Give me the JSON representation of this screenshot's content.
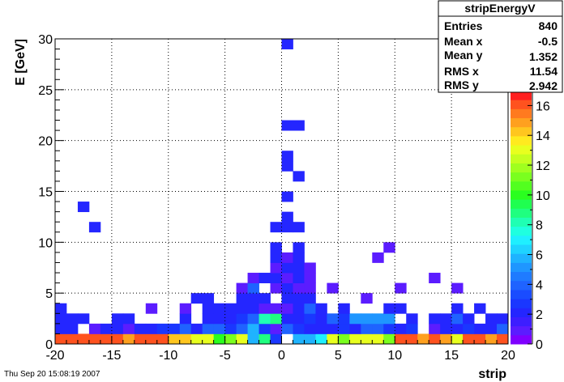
{
  "footer": {
    "timestamp": "Thu Sep 20 15:08:19 2007"
  },
  "stats_box": {
    "title": "stripEnergyV",
    "rows": [
      {
        "label": "Entries",
        "value": "840"
      },
      {
        "label": "Mean x",
        "value": "-0.5"
      },
      {
        "label": "Mean y",
        "value": "1.352"
      },
      {
        "label": "RMS x",
        "value": "11.54"
      },
      {
        "label": "RMS y",
        "value": "2.942"
      }
    ]
  },
  "chart_data": {
    "type": "heatmap",
    "title": "",
    "xlabel": "strip",
    "ylabel": "E [GeV]",
    "xlim": [
      -20,
      20
    ],
    "ylim": [
      0,
      30
    ],
    "x_bin_width": 1,
    "y_bin_width": 1,
    "x_ticks": [
      "-20",
      "-15",
      "-10",
      "-5",
      "0",
      "5",
      "10",
      "15",
      "20"
    ],
    "y_ticks": [
      "0",
      "5",
      "10",
      "15",
      "20",
      "25",
      "30"
    ],
    "z_range": [
      0,
      17
    ],
    "z_ticks": [
      "0",
      "2",
      "4",
      "6",
      "8",
      "10",
      "12",
      "14",
      "16"
    ],
    "grid": true,
    "palette": [
      "#7f00ff",
      "#5b1cff",
      "#3d1eff",
      "#2426ff",
      "#1a37ff",
      "#1a4cff",
      "#1f63ff",
      "#1f7bff",
      "#1f96ff",
      "#1fb3ff",
      "#1fd3ff",
      "#1fefff",
      "#1fffe0",
      "#1fffb3",
      "#1fff80",
      "#1fff50",
      "#2aff1f",
      "#52ff1f",
      "#7aff1f",
      "#a0ff1f",
      "#c5ff1f",
      "#e8ff1f",
      "#ffea1f",
      "#ffc61f",
      "#ffa01f",
      "#ff7a1f",
      "#ff521f",
      "#ff1f1f"
    ],
    "cells": [
      {
        "x": -19.5,
        "y": 0.5,
        "z": 16
      },
      {
        "x": -18.5,
        "y": 0.5,
        "z": 16
      },
      {
        "x": -17.5,
        "y": 0.5,
        "z": 16
      },
      {
        "x": -16.5,
        "y": 0.5,
        "z": 16
      },
      {
        "x": -15.5,
        "y": 0.5,
        "z": 16
      },
      {
        "x": -14.5,
        "y": 0.5,
        "z": 16
      },
      {
        "x": -13.5,
        "y": 0.5,
        "z": 15
      },
      {
        "x": -12.5,
        "y": 0.5,
        "z": 16
      },
      {
        "x": -11.5,
        "y": 0.5,
        "z": 16
      },
      {
        "x": -10.5,
        "y": 0.5,
        "z": 16
      },
      {
        "x": -9.5,
        "y": 0.5,
        "z": 14
      },
      {
        "x": -8.5,
        "y": 0.5,
        "z": 14
      },
      {
        "x": -7.5,
        "y": 0.5,
        "z": 13
      },
      {
        "x": -6.5,
        "y": 0.5,
        "z": 13
      },
      {
        "x": -5.5,
        "y": 0.5,
        "z": 10
      },
      {
        "x": -4.5,
        "y": 0.5,
        "z": 11
      },
      {
        "x": -3.5,
        "y": 0.5,
        "z": 13
      },
      {
        "x": -2.5,
        "y": 0.5,
        "z": 6
      },
      {
        "x": -1.5,
        "y": 0.5,
        "z": 9
      },
      {
        "x": -0.5,
        "y": 0.5,
        "z": 3
      },
      {
        "x": 0.5,
        "y": 0.5,
        "z": 0
      },
      {
        "x": 1.5,
        "y": 0.5,
        "z": 6
      },
      {
        "x": 2.5,
        "y": 0.5,
        "z": 6
      },
      {
        "x": 3.5,
        "y": 0.5,
        "z": 7
      },
      {
        "x": 4.5,
        "y": 0.5,
        "z": 13
      },
      {
        "x": 5.5,
        "y": 0.5,
        "z": 11
      },
      {
        "x": 6.5,
        "y": 0.5,
        "z": 13
      },
      {
        "x": 7.5,
        "y": 0.5,
        "z": 13
      },
      {
        "x": 8.5,
        "y": 0.5,
        "z": 13
      },
      {
        "x": 9.5,
        "y": 0.5,
        "z": 11
      },
      {
        "x": 10.5,
        "y": 0.5,
        "z": 16
      },
      {
        "x": 11.5,
        "y": 0.5,
        "z": 16
      },
      {
        "x": 12.5,
        "y": 0.5,
        "z": 15
      },
      {
        "x": 13.5,
        "y": 0.5,
        "z": 16
      },
      {
        "x": 14.5,
        "y": 0.5,
        "z": 15
      },
      {
        "x": 15.5,
        "y": 0.5,
        "z": 13
      },
      {
        "x": 16.5,
        "y": 0.5,
        "z": 16
      },
      {
        "x": 17.5,
        "y": 0.5,
        "z": 16
      },
      {
        "x": 18.5,
        "y": 0.5,
        "z": 15
      },
      {
        "x": 19.5,
        "y": 0.5,
        "z": 16
      },
      {
        "x": -19.5,
        "y": 1.5,
        "z": 2
      },
      {
        "x": -18.5,
        "y": 1.5,
        "z": 2
      },
      {
        "x": -16.5,
        "y": 1.5,
        "z": 1
      },
      {
        "x": -15.5,
        "y": 1.5,
        "z": 2
      },
      {
        "x": -14.5,
        "y": 1.5,
        "z": 2
      },
      {
        "x": -13.5,
        "y": 1.5,
        "z": 1
      },
      {
        "x": -12.5,
        "y": 1.5,
        "z": 2
      },
      {
        "x": -11.5,
        "y": 1.5,
        "z": 2
      },
      {
        "x": -10.5,
        "y": 1.5,
        "z": 3
      },
      {
        "x": -9.5,
        "y": 1.5,
        "z": 3
      },
      {
        "x": -8.5,
        "y": 1.5,
        "z": 4
      },
      {
        "x": -7.5,
        "y": 1.5,
        "z": 2
      },
      {
        "x": -6.5,
        "y": 1.5,
        "z": 4
      },
      {
        "x": -5.5,
        "y": 1.5,
        "z": 4
      },
      {
        "x": -4.5,
        "y": 1.5,
        "z": 3
      },
      {
        "x": -3.5,
        "y": 1.5,
        "z": 4
      },
      {
        "x": -2.5,
        "y": 1.5,
        "z": 6
      },
      {
        "x": -1.5,
        "y": 1.5,
        "z": 3
      },
      {
        "x": -0.5,
        "y": 1.5,
        "z": 1
      },
      {
        "x": 0.5,
        "y": 1.5,
        "z": 4
      },
      {
        "x": 1.5,
        "y": 1.5,
        "z": 3
      },
      {
        "x": 2.5,
        "y": 1.5,
        "z": 2
      },
      {
        "x": 3.5,
        "y": 1.5,
        "z": 2
      },
      {
        "x": 4.5,
        "y": 1.5,
        "z": 2
      },
      {
        "x": 5.5,
        "y": 1.5,
        "z": 3
      },
      {
        "x": 6.5,
        "y": 1.5,
        "z": 2
      },
      {
        "x": 7.5,
        "y": 1.5,
        "z": 4
      },
      {
        "x": 8.5,
        "y": 1.5,
        "z": 4
      },
      {
        "x": 9.5,
        "y": 1.5,
        "z": 3
      },
      {
        "x": 10.5,
        "y": 1.5,
        "z": 2
      },
      {
        "x": 11.5,
        "y": 1.5,
        "z": 3
      },
      {
        "x": 13.5,
        "y": 1.5,
        "z": 1
      },
      {
        "x": 14.5,
        "y": 1.5,
        "z": 2
      },
      {
        "x": 15.5,
        "y": 1.5,
        "z": 2
      },
      {
        "x": 16.5,
        "y": 1.5,
        "z": 3
      },
      {
        "x": 17.5,
        "y": 1.5,
        "z": 2
      },
      {
        "x": 18.5,
        "y": 1.5,
        "z": 2
      },
      {
        "x": 19.5,
        "y": 1.5,
        "z": 4
      },
      {
        "x": -19.5,
        "y": 2.5,
        "z": 2
      },
      {
        "x": -18.5,
        "y": 2.5,
        "z": 2
      },
      {
        "x": -17.5,
        "y": 2.5,
        "z": 2
      },
      {
        "x": -14.5,
        "y": 2.5,
        "z": 2
      },
      {
        "x": -13.5,
        "y": 2.5,
        "z": 2
      },
      {
        "x": -8.5,
        "y": 2.5,
        "z": 2
      },
      {
        "x": -6.5,
        "y": 2.5,
        "z": 2
      },
      {
        "x": -5.5,
        "y": 2.5,
        "z": 2
      },
      {
        "x": -4.5,
        "y": 2.5,
        "z": 2
      },
      {
        "x": -3.5,
        "y": 2.5,
        "z": 3
      },
      {
        "x": -2.5,
        "y": 2.5,
        "z": 4
      },
      {
        "x": -1.5,
        "y": 2.5,
        "z": 8
      },
      {
        "x": -0.5,
        "y": 2.5,
        "z": 9
      },
      {
        "x": 0.5,
        "y": 2.5,
        "z": 2
      },
      {
        "x": 1.5,
        "y": 2.5,
        "z": 2
      },
      {
        "x": 2.5,
        "y": 2.5,
        "z": 3
      },
      {
        "x": 3.5,
        "y": 2.5,
        "z": 2
      },
      {
        "x": 4.5,
        "y": 2.5,
        "z": 4
      },
      {
        "x": 5.5,
        "y": 2.5,
        "z": 3
      },
      {
        "x": 6.5,
        "y": 2.5,
        "z": 5
      },
      {
        "x": 7.5,
        "y": 2.5,
        "z": 5
      },
      {
        "x": 8.5,
        "y": 2.5,
        "z": 5
      },
      {
        "x": 9.5,
        "y": 2.5,
        "z": 5
      },
      {
        "x": 11.5,
        "y": 2.5,
        "z": 2
      },
      {
        "x": 13.5,
        "y": 2.5,
        "z": 2
      },
      {
        "x": 14.5,
        "y": 2.5,
        "z": 2
      },
      {
        "x": 15.5,
        "y": 2.5,
        "z": 4
      },
      {
        "x": 16.5,
        "y": 2.5,
        "z": 2
      },
      {
        "x": 18.5,
        "y": 2.5,
        "z": 2
      },
      {
        "x": 19.5,
        "y": 2.5,
        "z": 2
      },
      {
        "x": -19.5,
        "y": 3.5,
        "z": 2
      },
      {
        "x": -11.5,
        "y": 3.5,
        "z": 1
      },
      {
        "x": -8.5,
        "y": 3.5,
        "z": 1
      },
      {
        "x": -6.5,
        "y": 3.5,
        "z": 2
      },
      {
        "x": -5.5,
        "y": 3.5,
        "z": 2
      },
      {
        "x": -4.5,
        "y": 3.5,
        "z": 2
      },
      {
        "x": -3.5,
        "y": 3.5,
        "z": 2
      },
      {
        "x": -2.5,
        "y": 3.5,
        "z": 2
      },
      {
        "x": -1.5,
        "y": 3.5,
        "z": 1
      },
      {
        "x": -0.5,
        "y": 3.5,
        "z": 1
      },
      {
        "x": 0.5,
        "y": 3.5,
        "z": 1
      },
      {
        "x": 1.5,
        "y": 3.5,
        "z": 2
      },
      {
        "x": 2.5,
        "y": 3.5,
        "z": 4
      },
      {
        "x": 3.5,
        "y": 3.5,
        "z": 2
      },
      {
        "x": 5.5,
        "y": 3.5,
        "z": 2
      },
      {
        "x": 9.5,
        "y": 3.5,
        "z": 2
      },
      {
        "x": 10.5,
        "y": 3.5,
        "z": 2
      },
      {
        "x": 15.5,
        "y": 3.5,
        "z": 2
      },
      {
        "x": 17.5,
        "y": 3.5,
        "z": 2
      },
      {
        "x": -7.5,
        "y": 4.5,
        "z": 2
      },
      {
        "x": -6.5,
        "y": 4.5,
        "z": 2
      },
      {
        "x": -3.5,
        "y": 4.5,
        "z": 2
      },
      {
        "x": -2.5,
        "y": 4.5,
        "z": 2
      },
      {
        "x": -1.5,
        "y": 4.5,
        "z": 2
      },
      {
        "x": 0.5,
        "y": 4.5,
        "z": 2
      },
      {
        "x": 1.5,
        "y": 4.5,
        "z": 2
      },
      {
        "x": 2.5,
        "y": 4.5,
        "z": 2
      },
      {
        "x": 7.5,
        "y": 4.5,
        "z": 1
      },
      {
        "x": -3.5,
        "y": 5.5,
        "z": 1
      },
      {
        "x": -2.5,
        "y": 5.5,
        "z": 4
      },
      {
        "x": -0.5,
        "y": 5.5,
        "z": 1
      },
      {
        "x": 0.5,
        "y": 5.5,
        "z": 2
      },
      {
        "x": 1.5,
        "y": 5.5,
        "z": 1
      },
      {
        "x": 2.5,
        "y": 5.5,
        "z": 1
      },
      {
        "x": 4.5,
        "y": 5.5,
        "z": 1
      },
      {
        "x": 10.5,
        "y": 5.5,
        "z": 1
      },
      {
        "x": 15.5,
        "y": 5.5,
        "z": 1
      },
      {
        "x": -2.5,
        "y": 6.5,
        "z": 1
      },
      {
        "x": -1.5,
        "y": 6.5,
        "z": 2
      },
      {
        "x": -0.5,
        "y": 6.5,
        "z": 2
      },
      {
        "x": 0.5,
        "y": 6.5,
        "z": 1
      },
      {
        "x": 1.5,
        "y": 6.5,
        "z": 2
      },
      {
        "x": 2.5,
        "y": 6.5,
        "z": 1
      },
      {
        "x": 13.5,
        "y": 6.5,
        "z": 1
      },
      {
        "x": -0.5,
        "y": 7.5,
        "z": 1
      },
      {
        "x": 0.5,
        "y": 7.5,
        "z": 2
      },
      {
        "x": 1.5,
        "y": 7.5,
        "z": 2
      },
      {
        "x": 2.5,
        "y": 7.5,
        "z": 1
      },
      {
        "x": -0.5,
        "y": 8.5,
        "z": 2
      },
      {
        "x": 0.5,
        "y": 8.5,
        "z": 1
      },
      {
        "x": 1.5,
        "y": 8.5,
        "z": 2
      },
      {
        "x": 8.5,
        "y": 8.5,
        "z": 1
      },
      {
        "x": -0.5,
        "y": 9.5,
        "z": 2
      },
      {
        "x": 1.5,
        "y": 9.5,
        "z": 2
      },
      {
        "x": 9.5,
        "y": 9.5,
        "z": 1
      },
      {
        "x": -0.5,
        "y": 11.5,
        "z": 2
      },
      {
        "x": 0.5,
        "y": 11.5,
        "z": 2
      },
      {
        "x": 1.5,
        "y": 11.5,
        "z": 2
      },
      {
        "x": -16.5,
        "y": 11.5,
        "z": 2
      },
      {
        "x": 0.5,
        "y": 12.5,
        "z": 2
      },
      {
        "x": -17.5,
        "y": 13.5,
        "z": 2
      },
      {
        "x": 0.5,
        "y": 14.5,
        "z": 2
      },
      {
        "x": 1.5,
        "y": 16.5,
        "z": 2
      },
      {
        "x": 0.5,
        "y": 17.5,
        "z": 2
      },
      {
        "x": 0.5,
        "y": 18.5,
        "z": 2
      },
      {
        "x": 0.5,
        "y": 21.5,
        "z": 2
      },
      {
        "x": 1.5,
        "y": 21.5,
        "z": 2
      },
      {
        "x": 0.5,
        "y": 29.5,
        "z": 2
      }
    ]
  }
}
